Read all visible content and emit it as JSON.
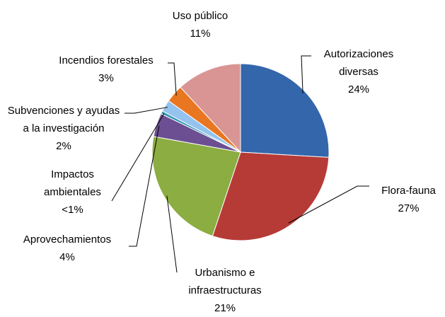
{
  "chart_data": {
    "type": "pie",
    "categories": [
      "Autorizaciones diversas",
      "Flora-fauna",
      "Urbanismo e infraestructuras",
      "Aprovechamientos",
      "Impactos ambientales",
      "Subvenciones y ayudas a la investigación",
      "Incendios forestales",
      "Uso público"
    ],
    "values": [
      24,
      27,
      21,
      4,
      0.5,
      2,
      3,
      11
    ],
    "value_labels": [
      "24%",
      "27%",
      "21%",
      "4%",
      "<1%",
      "2%",
      "3%",
      "11%"
    ],
    "colors": [
      "#3466ab",
      "#b63b37",
      "#8bad41",
      "#6b4f92",
      "#3096b0",
      "#95c3ef",
      "#e97620",
      "#d99593"
    ]
  }
}
